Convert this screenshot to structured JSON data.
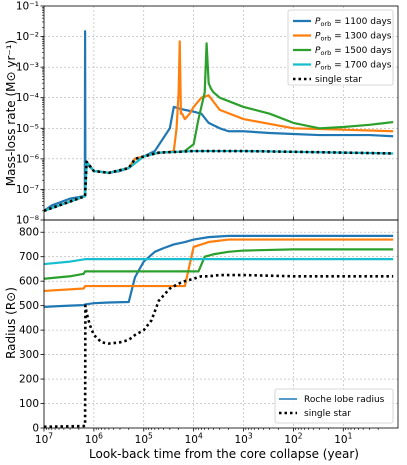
{
  "colors": {
    "p1100": "#1f77b4",
    "p1300": "#ff7f0e",
    "p1500": "#2ca02c",
    "p1700": "#17becf",
    "single": "#000000",
    "grid": "#b0b0b0"
  },
  "chart_data": [
    {
      "type": "line",
      "panel": "top",
      "ylabel": "Mass-loss rate (M⊙ yr⁻¹)",
      "xscale": "log-reversed",
      "yscale": "log",
      "xlim": [
        10000000,
        0.8
      ],
      "ylim": [
        1e-08,
        0.1
      ],
      "grid": true,
      "legend_position": "top-right",
      "y_ticks": [
        {
          "v": 0.1,
          "l": "10⁻¹"
        },
        {
          "v": 0.01,
          "l": "10⁻²"
        },
        {
          "v": 0.001,
          "l": "10⁻³"
        },
        {
          "v": 0.0001,
          "l": "10⁻⁴"
        },
        {
          "v": 1e-05,
          "l": "10⁻⁵"
        },
        {
          "v": 1e-06,
          "l": "10⁻⁶"
        },
        {
          "v": 1e-07,
          "l": "10⁻⁷"
        },
        {
          "v": 1e-08,
          "l": "10⁻⁸"
        }
      ],
      "series": [
        {
          "name": "P_orb = 1100 days",
          "label_sub": "orb",
          "label_rest": " = 1100 days",
          "color_key": "p1100",
          "x": [
            10000000,
            7000000,
            3000000,
            1600000,
            1520000,
            1500000,
            1480000,
            1460000,
            1400000,
            1000000,
            500000,
            300000,
            200000,
            150000,
            100000,
            60000,
            30000,
            25000,
            20000,
            15000,
            10000,
            7000,
            5000,
            3000,
            2000,
            1000,
            300,
            100,
            30,
            10,
            3,
            1
          ],
          "y": [
            2e-08,
            3e-08,
            5e-08,
            6e-08,
            6e-08,
            0.015,
            3e-07,
            8e-07,
            7e-07,
            4e-07,
            3.5e-07,
            4e-07,
            5e-07,
            1e-06,
            1.2e-06,
            1.8e-06,
            1e-05,
            5e-05,
            4.5e-05,
            4e-05,
            3.5e-05,
            3e-05,
            1.5e-05,
            1e-05,
            8e-06,
            8e-06,
            7e-06,
            6.5e-06,
            6e-06,
            6e-06,
            6e-06,
            5.5e-06
          ]
        },
        {
          "name": "P_orb = 1300 days",
          "label_sub": "orb",
          "label_rest": " = 1300 days",
          "color_key": "p1300",
          "x": [
            10000000,
            1500000,
            1400000,
            1000000,
            500000,
            200000,
            150000,
            100000,
            60000,
            30000,
            25000,
            22000,
            20000,
            19000,
            18000,
            17000,
            15000,
            12000,
            10000,
            7000,
            5000,
            3000,
            1000,
            100,
            10,
            1
          ],
          "y": [
            2e-08,
            6e-08,
            8e-07,
            4e-07,
            3.5e-07,
            5e-07,
            1e-06,
            1.2e-06,
            1.5e-06,
            1.7e-06,
            1.8e-06,
            1e-05,
            0.00015,
            0.007,
            3e-05,
            3e-05,
            2e-05,
            3e-05,
            5e-05,
            0.0001,
            0.00012,
            4e-05,
            2e-05,
            1e-05,
            9e-06,
            8e-06
          ]
        },
        {
          "name": "P_orb = 1500 days",
          "label_sub": "orb",
          "label_rest": " = 1500 days",
          "color_key": "p1500",
          "x": [
            10000000,
            1500000,
            1400000,
            1000000,
            500000,
            200000,
            100000,
            50000,
            20000,
            15000,
            10000,
            8000,
            6000,
            5500,
            5000,
            4500,
            4000,
            3000,
            1000,
            300,
            100,
            30,
            10,
            3,
            1
          ],
          "y": [
            2e-08,
            6e-08,
            8e-07,
            4e-07,
            3.5e-07,
            5e-07,
            1.2e-06,
            1.6e-06,
            1.7e-06,
            1.8e-06,
            3e-06,
            2e-05,
            0.00015,
            0.006,
            0.0003,
            0.0002,
            0.00015,
            0.0001,
            5e-05,
            3e-05,
            1.5e-05,
            1e-05,
            1.1e-05,
            1.3e-05,
            1.6e-05
          ]
        },
        {
          "name": "P_orb = 1700 days",
          "label_sub": "orb",
          "label_rest": " = 1700 days",
          "color_key": "p1700",
          "x": [
            10000000,
            1500000,
            1400000,
            1000000,
            500000,
            200000,
            100000,
            50000,
            20000,
            10000,
            5000,
            2000,
            1000,
            100,
            10,
            1
          ],
          "y": [
            2e-08,
            6e-08,
            8e-07,
            4e-07,
            3.5e-07,
            5e-07,
            1.2e-06,
            1.6e-06,
            1.7e-06,
            1.8e-06,
            1.8e-06,
            1.8e-06,
            1.8e-06,
            1.7e-06,
            1.6e-06,
            1.5e-06
          ]
        },
        {
          "name": "single star",
          "color_key": "single",
          "dashed": true,
          "x": [
            10000000,
            1500000,
            1400000,
            1000000,
            500000,
            200000,
            150000,
            100000,
            50000,
            20000,
            10000,
            5000,
            2000,
            1000,
            100,
            10,
            1
          ],
          "y": [
            2e-08,
            6e-08,
            8e-07,
            4e-07,
            3.5e-07,
            5e-07,
            1e-06,
            1.2e-06,
            1.6e-06,
            1.7e-06,
            1.8e-06,
            1.8e-06,
            1.8e-06,
            1.8e-06,
            1.7e-06,
            1.6e-06,
            1.5e-06
          ]
        }
      ]
    },
    {
      "type": "line",
      "panel": "bottom",
      "xlabel": "Look-back time from the core collapse (year)",
      "ylabel": "Radius (R⊙)",
      "xscale": "log-reversed",
      "xlim": [
        10000000,
        0.8
      ],
      "ylim": [
        0,
        850
      ],
      "grid": true,
      "legend_position": "bottom-right",
      "x_ticks": [
        {
          "v": 10000000,
          "base": "10",
          "exp": "7"
        },
        {
          "v": 1000000,
          "base": "10",
          "exp": "6"
        },
        {
          "v": 100000,
          "base": "10",
          "exp": "5"
        },
        {
          "v": 10000,
          "base": "10",
          "exp": "4"
        },
        {
          "v": 1000,
          "base": "10",
          "exp": "3"
        },
        {
          "v": 100,
          "base": "10",
          "exp": "2"
        },
        {
          "v": 10,
          "base": "10",
          "exp": "1"
        }
      ],
      "y_ticks": [
        0,
        100,
        200,
        300,
        400,
        500,
        600,
        700,
        800
      ],
      "legend": [
        {
          "label": "Roche lobe radius",
          "color_key": "p1100"
        },
        {
          "label": "single star",
          "color_key": "single",
          "dashed": true
        }
      ],
      "series": [
        {
          "name": "Roche lobe radius (1100 days)",
          "color_key": "p1100",
          "x": [
            10000000,
            5000000,
            3000000,
            1600000,
            1500000,
            1000000,
            500000,
            200000,
            150000,
            100000,
            60000,
            40000,
            25000,
            15000,
            10000,
            5000,
            2000,
            1000,
            100,
            10,
            1
          ],
          "y": [
            495,
            498,
            500,
            502,
            505,
            510,
            513,
            515,
            616,
            680,
            720,
            735,
            750,
            760,
            770,
            780,
            785,
            785,
            785,
            785,
            785
          ]
        },
        {
          "name": "Roche lobe radius (1300 days)",
          "color_key": "p1300",
          "x": [
            10000000,
            1600000,
            1500000,
            1000000,
            500000,
            200000,
            50000,
            30000,
            20000,
            15000,
            10000,
            5000,
            2000,
            1000,
            100,
            10,
            1
          ],
          "y": [
            560,
            570,
            580,
            580,
            580,
            580,
            580,
            580,
            580,
            580,
            740,
            760,
            770,
            770,
            770,
            770,
            770
          ]
        },
        {
          "name": "Roche lobe radius (1500 days)",
          "color_key": "p1500",
          "x": [
            10000000,
            3000000,
            1600000,
            1500000,
            1000000,
            500000,
            100000,
            50000,
            20000,
            10000,
            8000,
            6000,
            4000,
            2000,
            1000,
            100,
            10,
            1
          ],
          "y": [
            610,
            620,
            630,
            640,
            640,
            640,
            640,
            640,
            640,
            640,
            640,
            700,
            710,
            720,
            725,
            730,
            730,
            730
          ]
        },
        {
          "name": "Roche lobe radius (1700 days)",
          "color_key": "p1700",
          "x": [
            10000000,
            3000000,
            1500000,
            1000000,
            500000,
            100000,
            10000,
            1000,
            100,
            10,
            1
          ],
          "y": [
            670,
            680,
            690,
            690,
            690,
            690,
            690,
            690,
            690,
            690,
            690
          ]
        },
        {
          "name": "single star",
          "color_key": "single",
          "dashed": true,
          "x": [
            10000000,
            1600000,
            1500000,
            1480000,
            1400000,
            1200000,
            1000000,
            700000,
            500000,
            300000,
            200000,
            150000,
            100000,
            70000,
            50000,
            30000,
            20000,
            15000,
            10000,
            7000,
            5000,
            3000,
            2000,
            1000,
            100,
            10,
            1
          ],
          "y": [
            5,
            8,
            10,
            500,
            470,
            420,
            380,
            350,
            345,
            350,
            360,
            380,
            400,
            440,
            520,
            570,
            590,
            600,
            610,
            620,
            620,
            625,
            625,
            625,
            620,
            620,
            620
          ]
        }
      ]
    }
  ]
}
